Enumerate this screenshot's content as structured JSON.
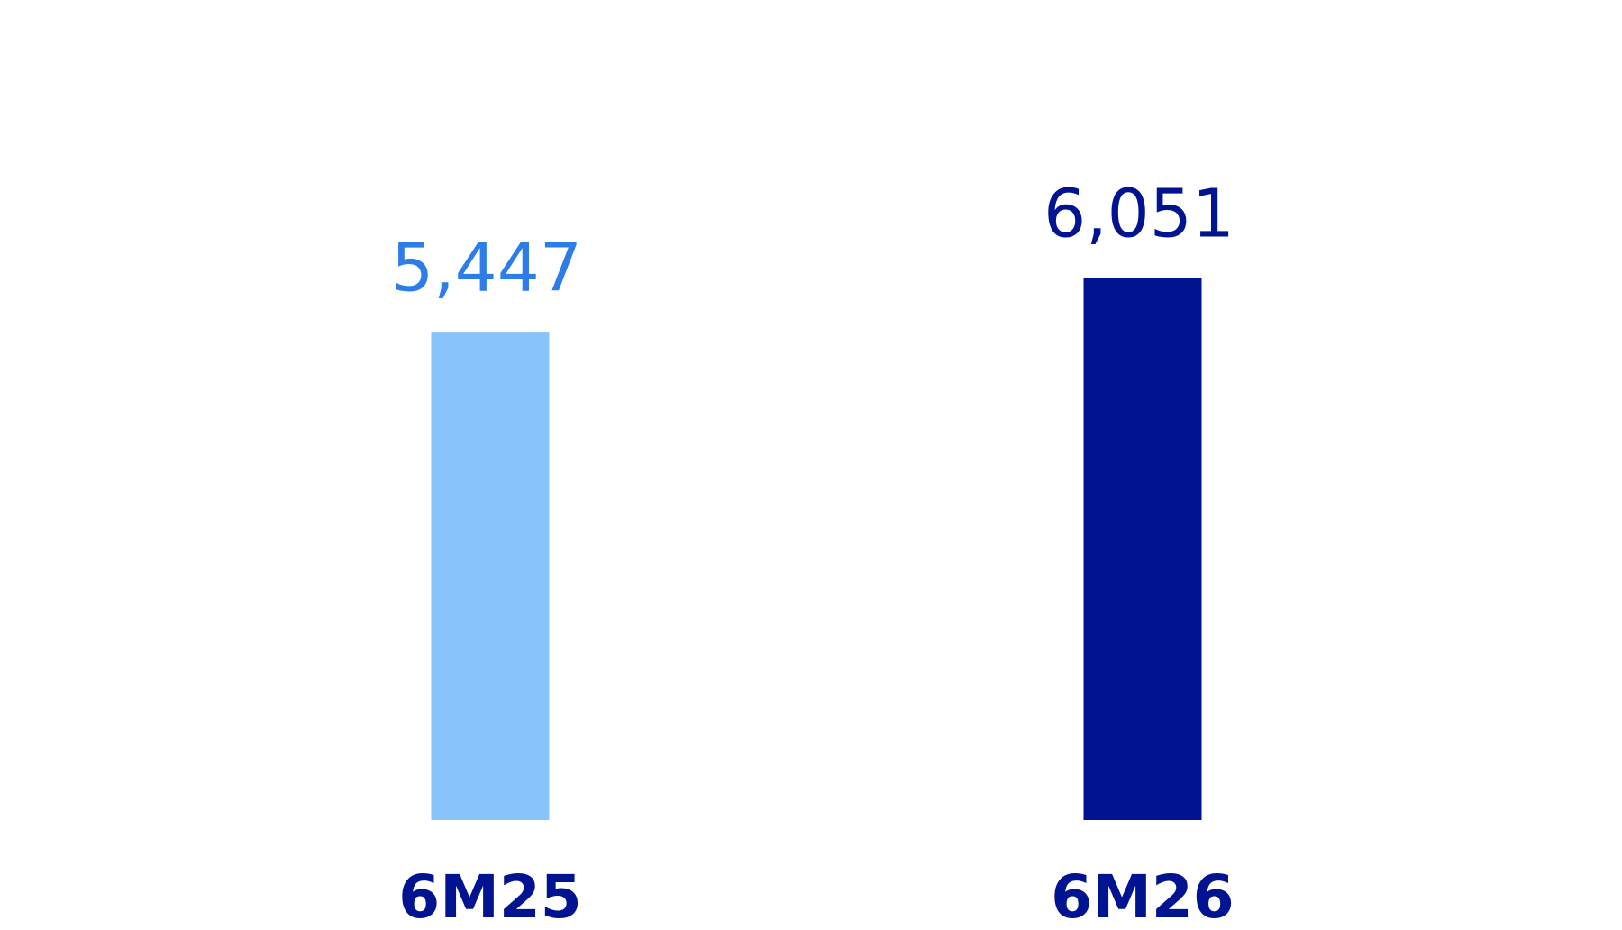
{
  "chart_data": {
    "type": "bar",
    "categories": [
      "6M25",
      "6M26"
    ],
    "values": [
      5447,
      6051
    ],
    "value_labels": [
      "5,447",
      "6,051"
    ],
    "colors": [
      "#89c5fb",
      "#001391"
    ],
    "value_label_colors": [
      "#2d7ce8",
      "#001391"
    ],
    "category_label_color": "#001391"
  }
}
